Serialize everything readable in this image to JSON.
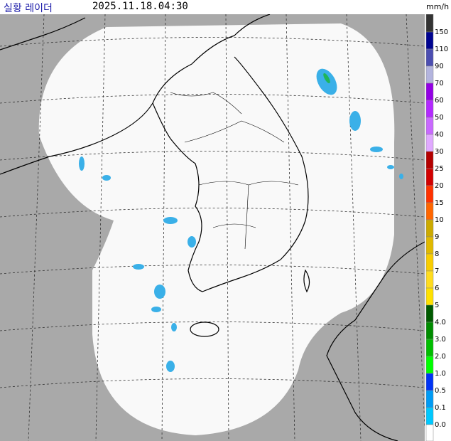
{
  "header": {
    "title": "실황 레이더",
    "time": "2025.11.18.04:30"
  },
  "legend": {
    "unit": "mm/h",
    "labels": [
      "150",
      "110",
      "90",
      "70",
      "60",
      "50",
      "40",
      "30",
      "25",
      "20",
      "15",
      "10",
      "9",
      "8",
      "7",
      "6",
      "5",
      "4.0",
      "3.0",
      "2.0",
      "1.0",
      "0.5",
      "0.1",
      "0.0"
    ],
    "colors": [
      "#333333",
      "#000390",
      "#4c4eb1",
      "#b3b4de",
      "#9300e4",
      "#b329ff",
      "#c969ff",
      "#e0a9ff",
      "#b40000",
      "#d20000",
      "#ff3200",
      "#ff6600",
      "#ccaa00",
      "#e0b900",
      "#f9cd00",
      "#ffdc1f",
      "#ffe100",
      "#005a00",
      "#008c00",
      "#00be00",
      "#00ff00",
      "#0033f5",
      "#009bf5",
      "#00c8ff",
      "#ffffff"
    ]
  }
}
